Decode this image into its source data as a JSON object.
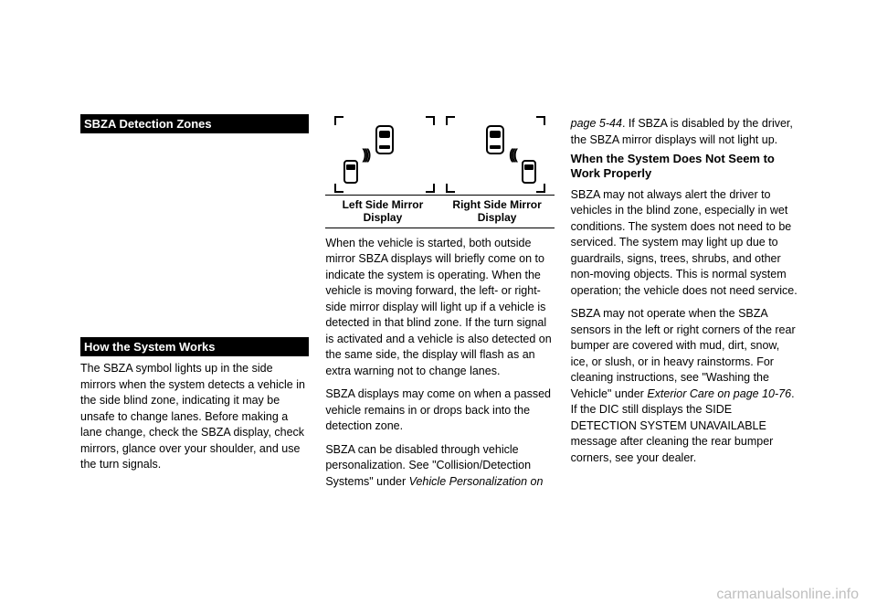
{
  "col1": {
    "header1": "SBZA Detection Zones",
    "header2": "How the System Works",
    "p1": "The SBZA symbol lights up in the side mirrors when the system detects a vehicle in the side blind zone, indicating it may be unsafe to change lanes. Before making a lane change, check the SBZA display, check mirrors, glance over your shoulder, and use the turn signals."
  },
  "col2": {
    "caption_left": "Left Side Mirror Display",
    "caption_right": "Right Side Mirror Display",
    "p1": "When the vehicle is started, both outside mirror SBZA displays will briefly come on to indicate the system is operating. When the vehicle is moving forward, the left- or right-side mirror display will light up if a vehicle is detected in that blind zone. If the turn signal is activated and a vehicle is also detected on the same side, the display will flash as an extra warning not to change lanes.",
    "p2": "SBZA displays may come on when a passed vehicle remains in or drops back into the detection zone.",
    "p3a": "SBZA can be disabled through vehicle personalization. See \"Collision/Detection Systems\" under ",
    "p3b": "Vehicle Personalization on"
  },
  "col3": {
    "p0a": "page 5-44",
    "p0b": ". If SBZA is disabled by the driver, the SBZA mirror displays will not light up.",
    "header1": "When the System Does Not Seem to Work Properly",
    "p1": "SBZA may not always alert the driver to vehicles in the blind zone, especially in wet conditions. The system does not need to be serviced. The system may light up due to guardrails, signs, trees, shrubs, and other non-moving objects. This is normal system operation; the vehicle does not need service.",
    "p2a": "SBZA may not operate when the SBZA sensors in the left or right corners of the rear bumper are covered with mud, dirt, snow, ice, or slush, or in heavy rainstorms. For cleaning instructions, see \"Washing the Vehicle\" under ",
    "p2b": "Exterior Care on page 10-76",
    "p2c": ". If the DIC still displays the SIDE DETECTION SYSTEM UNAVAILABLE message after cleaning the rear bumper corners, see your dealer."
  },
  "watermark": "carmanualsonline.info"
}
